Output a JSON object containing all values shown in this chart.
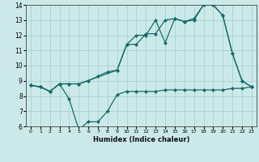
{
  "xlabel": "Humidex (Indice chaleur)",
  "xlim": [
    -0.5,
    23.5
  ],
  "ylim": [
    6,
    14
  ],
  "xticks": [
    0,
    1,
    2,
    3,
    4,
    5,
    6,
    7,
    8,
    9,
    10,
    11,
    12,
    13,
    14,
    15,
    16,
    17,
    18,
    19,
    20,
    21,
    22,
    23
  ],
  "yticks": [
    6,
    7,
    8,
    9,
    10,
    11,
    12,
    13,
    14
  ],
  "bg_color": "#cce9e9",
  "grid_color": "#add4d4",
  "line_color": "#1a6b6b",
  "line1_x": [
    0,
    1,
    2,
    3,
    4,
    5,
    6,
    7,
    8,
    9,
    10,
    11,
    12,
    13,
    14,
    15,
    16,
    17,
    18,
    19,
    20,
    21,
    22,
    23
  ],
  "line1_y": [
    8.7,
    8.6,
    8.3,
    8.8,
    7.8,
    5.8,
    6.3,
    6.3,
    7.0,
    8.1,
    8.3,
    8.3,
    8.3,
    8.3,
    8.4,
    8.4,
    8.4,
    8.4,
    8.4,
    8.4,
    8.4,
    8.5,
    8.5,
    8.6
  ],
  "line2_x": [
    0,
    1,
    2,
    3,
    4,
    5,
    6,
    7,
    8,
    9,
    10,
    11,
    12,
    13,
    14,
    15,
    16,
    17,
    18,
    19,
    20,
    21,
    22,
    23
  ],
  "line2_y": [
    8.7,
    8.6,
    8.3,
    8.8,
    8.8,
    8.8,
    9.0,
    9.3,
    9.6,
    9.7,
    11.4,
    12.0,
    12.0,
    13.0,
    11.5,
    13.1,
    12.9,
    13.0,
    14.0,
    14.0,
    13.3,
    10.8,
    9.0,
    8.6
  ],
  "line3_x": [
    0,
    1,
    2,
    3,
    4,
    5,
    9,
    10,
    11,
    12,
    13,
    14,
    15,
    16,
    17,
    18,
    19,
    20,
    21,
    22,
    23
  ],
  "line3_y": [
    8.7,
    8.6,
    8.3,
    8.8,
    8.8,
    8.8,
    9.7,
    11.4,
    11.4,
    12.1,
    12.1,
    13.0,
    13.1,
    12.9,
    13.1,
    14.0,
    14.0,
    13.3,
    10.8,
    9.0,
    8.6
  ]
}
